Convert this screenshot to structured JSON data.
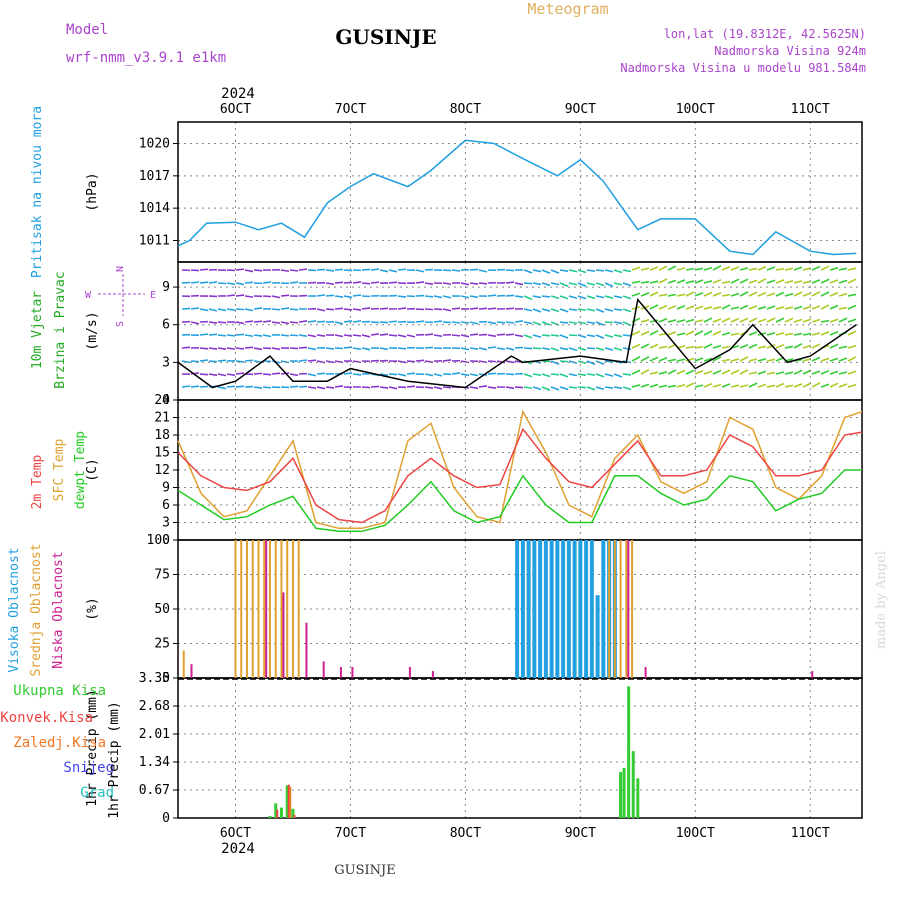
{
  "header": {
    "model_label": "Model",
    "model_name": "wrf-nmm_v3.9.1 e1km",
    "station": "GUSINJE",
    "product": "Meteogram",
    "coords": "lon,lat (19.8312E, 42.5625N)",
    "elevation": "Nadmorska Visina 924m",
    "model_elevation": "Nadmorska Visina u modelu 981.584m",
    "year_top": "2024",
    "year_bottom": "2024",
    "footer_station": "GUSINJE",
    "credit": "made by Angel"
  },
  "colors": {
    "pressure": "#1f9fe0",
    "temp2m": "#ee4444",
    "sfc": "#e0a030",
    "dewpt": "#22cc22",
    "high": "#22a0e0",
    "mid": "#e0a030",
    "low": "#cc2090",
    "rain": "#33cc33",
    "convective": "#ee4444",
    "snow_label": "#4444ee",
    "graupel_label": "#22c0c0",
    "freezing_label": "#ee7722",
    "wind_label": "#22aa22",
    "compass": "#aa44cc"
  },
  "date_ticks": [
    "6OCT",
    "7OCT",
    "8OCT",
    "9OCT",
    "10OCT",
    "11OCT"
  ],
  "panels": {
    "pressure": {
      "labels": [
        "Pritisak na nivou mora"
      ],
      "unit": "(hPa)",
      "yticks": [
        "1011",
        "1014",
        "1017",
        "1020"
      ]
    },
    "wind": {
      "labels": [
        "10m Vjetar",
        "Brzina i Pravac"
      ],
      "unit": "(m/s)",
      "compass": [
        "N",
        "E",
        "S",
        "W"
      ],
      "yticks": [
        "0",
        "3",
        "6",
        "9"
      ]
    },
    "temp": {
      "labels": [
        "2m Temp",
        "SFC Temp",
        "dewpt Temp"
      ],
      "unit": "(C)",
      "yticks": [
        "0",
        "3",
        "6",
        "9",
        "12",
        "15",
        "18",
        "21",
        "24"
      ]
    },
    "cloud": {
      "labels": [
        "Visoka Oblacnost",
        "Srednja Oblacnost",
        "Niska Oblacnost"
      ],
      "unit": "(%)",
      "yticks": [
        "0",
        "25",
        "50",
        "75",
        "100"
      ]
    },
    "precip": {
      "labels": [
        "Ukupna Kisa",
        "Konvek.Kisa",
        "Zaledj.Kisa",
        "Snijeg",
        "Grad"
      ],
      "unit": "1hr Precip (mm)",
      "yticks": [
        "0",
        "0.67",
        "1.34",
        "2.01",
        "2.68",
        "3.35"
      ]
    }
  },
  "chart_data": [
    {
      "type": "line",
      "title": "Pritisak na nivou mora",
      "ylabel": "(hPa)",
      "ylim": [
        1009,
        1022
      ],
      "x_days": [
        5.5,
        5.6,
        5.75,
        6.0,
        6.2,
        6.4,
        6.6,
        6.8,
        7.0,
        7.2,
        7.5,
        7.7,
        8.0,
        8.25,
        8.5,
        8.8,
        9.0,
        9.2,
        9.5,
        9.7,
        10.0,
        10.3,
        10.5,
        10.7,
        11.0,
        11.2,
        11.4
      ],
      "series": [
        {
          "values": [
            1010.5,
            1011.0,
            1012.6,
            1012.7,
            1012.0,
            1012.6,
            1011.3,
            1014.5,
            1016.0,
            1017.2,
            1016.0,
            1017.5,
            1020.3,
            1020.0,
            1018.6,
            1017.0,
            1018.5,
            1016.5,
            1012.0,
            1013.0,
            1013.0,
            1010.0,
            1009.7,
            1011.8,
            1010.0,
            1009.7,
            1009.8
          ]
        }
      ],
      "grid": true
    },
    {
      "type": "line",
      "title": "10m Vjetar Brzina i Pravac",
      "ylabel": "(m/s)",
      "ylim": [
        0,
        11
      ],
      "x_days": [
        5.5,
        5.8,
        6.0,
        6.3,
        6.5,
        6.8,
        7.0,
        7.5,
        8.0,
        8.4,
        8.5,
        9.0,
        9.4,
        9.5,
        10.0,
        10.3,
        10.5,
        10.8,
        11.0,
        11.4
      ],
      "series": [
        {
          "values": [
            3.0,
            1.0,
            1.5,
            3.5,
            1.5,
            1.5,
            2.5,
            1.5,
            1.0,
            3.5,
            3.0,
            3.5,
            3.0,
            8.0,
            2.5,
            4.0,
            6.0,
            3.0,
            3.5,
            6.0
          ]
        }
      ],
      "grid": true
    },
    {
      "type": "line",
      "title": "Temperature",
      "ylabel": "(C)",
      "ylim": [
        0,
        24
      ],
      "x_days": [
        5.5,
        5.7,
        5.9,
        6.1,
        6.3,
        6.5,
        6.7,
        6.9,
        7.1,
        7.3,
        7.5,
        7.7,
        7.9,
        8.1,
        8.3,
        8.5,
        8.7,
        8.9,
        9.1,
        9.3,
        9.5,
        9.7,
        9.9,
        10.1,
        10.3,
        10.5,
        10.7,
        10.9,
        11.1,
        11.3,
        11.45
      ],
      "series": [
        {
          "name": "2m Temp",
          "values": [
            15,
            11,
            9,
            8.5,
            10,
            14,
            6,
            3.5,
            3,
            5,
            11,
            14,
            11,
            9,
            9.5,
            19,
            14,
            10,
            9,
            13,
            17,
            11,
            11,
            12,
            18,
            16,
            11,
            11,
            12,
            18,
            18.5
          ]
        },
        {
          "name": "SFC Temp",
          "values": [
            17,
            8,
            4,
            5,
            11,
            17,
            3,
            2,
            2,
            3,
            17,
            20,
            9,
            4,
            3,
            22,
            15,
            6,
            4,
            14,
            18,
            10,
            8,
            10,
            21,
            19,
            9,
            7,
            11,
            21,
            22
          ]
        },
        {
          "name": "dewpt Temp",
          "values": [
            8.5,
            6,
            3.5,
            4,
            6,
            7.5,
            2,
            1.5,
            1.5,
            2.5,
            6,
            10,
            5,
            3,
            4,
            11,
            6,
            3,
            3,
            11,
            11,
            8,
            6,
            7,
            11,
            10,
            5,
            7,
            8,
            12,
            12
          ]
        }
      ],
      "grid": true
    },
    {
      "type": "bar",
      "title": "Oblacnost",
      "ylabel": "(%)",
      "ylim": [
        0,
        100
      ],
      "series": [
        {
          "name": "Visoka Oblacnost",
          "x_days": [
            8.45,
            8.5,
            8.55,
            8.6,
            8.65,
            8.7,
            8.75,
            8.8,
            8.85,
            8.9,
            8.95,
            9.0,
            9.05,
            9.1,
            9.15,
            9.2,
            9.25,
            9.3,
            9.35,
            9.4
          ],
          "values": [
            100,
            100,
            100,
            100,
            100,
            100,
            100,
            100,
            100,
            100,
            100,
            100,
            100,
            100,
            60,
            100,
            100,
            100,
            0,
            0
          ]
        },
        {
          "name": "Srednja Oblacnost",
          "x_days": [
            5.55,
            6.0,
            6.05,
            6.1,
            6.15,
            6.2,
            6.25,
            6.3,
            6.35,
            6.4,
            6.45,
            6.5,
            6.55,
            9.25,
            9.3,
            9.35,
            9.4,
            9.45
          ],
          "values": [
            20,
            100,
            100,
            100,
            100,
            100,
            100,
            100,
            100,
            100,
            100,
            100,
            100,
            100,
            100,
            100,
            100,
            100
          ]
        },
        {
          "name": "Niska Oblacnost",
          "x_days": [
            5.6,
            6.25,
            6.4,
            6.6,
            6.75,
            6.9,
            7.0,
            7.5,
            7.7,
            9.4,
            9.55,
            11.0
          ],
          "values": [
            10,
            100,
            62,
            40,
            12,
            8,
            8,
            8,
            5,
            100,
            8,
            5
          ]
        }
      ],
      "grid": true
    },
    {
      "type": "bar",
      "title": "1hr Precip",
      "ylabel": "(mm)",
      "ylim": [
        0,
        3.35
      ],
      "series": [
        {
          "name": "Ukupna Kisa",
          "x_days": [
            6.3,
            6.35,
            6.4,
            6.45,
            6.5,
            9.35,
            9.38,
            9.42,
            9.46,
            9.5
          ],
          "values": [
            0.05,
            0.35,
            0.25,
            0.78,
            0.22,
            1.1,
            1.2,
            3.15,
            1.6,
            0.95
          ]
        },
        {
          "name": "Konvek.Kisa",
          "x_days": [
            6.35,
            6.45,
            6.5
          ],
          "values": [
            0.2,
            0.8,
            0.08
          ]
        },
        {
          "name": "Zaledj.Kisa",
          "x_days": [
            6.45
          ],
          "values": [
            0.75
          ]
        }
      ],
      "grid": true
    }
  ]
}
